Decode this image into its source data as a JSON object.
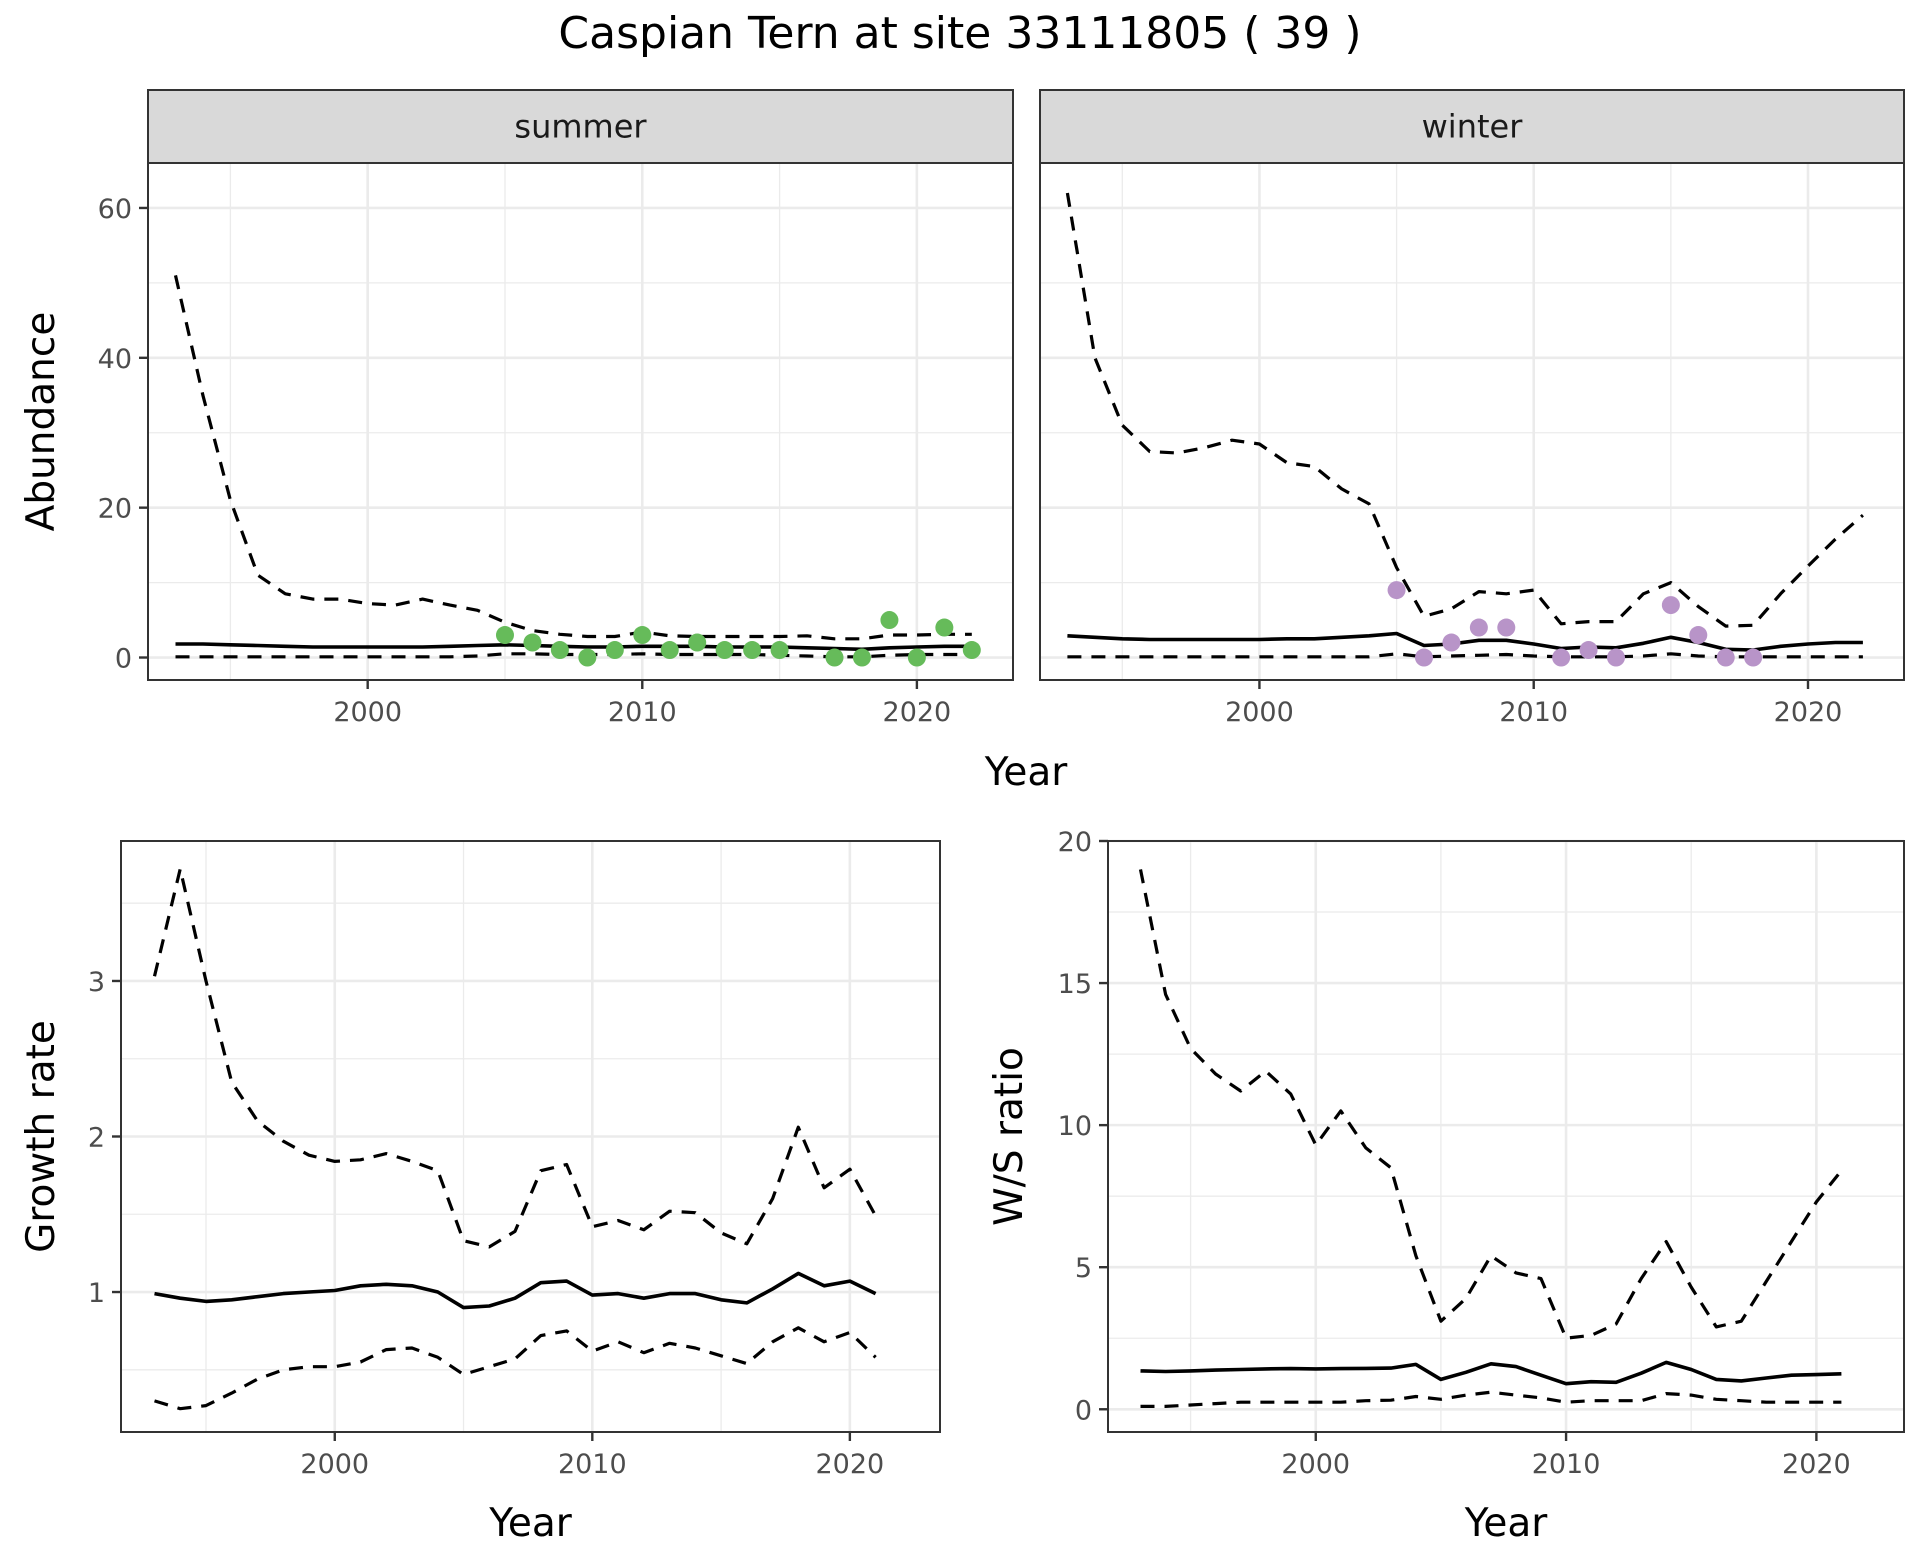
{
  "figure": {
    "title": "Caspian Tern at site 33111805 ( 39 )"
  },
  "colors": {
    "summer_points": "#66bb5a",
    "winter_points": "#b894c8",
    "line": "#000000"
  },
  "chart_data": [
    {
      "id": "abundance",
      "type": "line",
      "ylabel": "Abundance",
      "xlabel": "Year",
      "xlim": [
        1992,
        2023.5
      ],
      "ylim": [
        -3,
        66
      ],
      "x_ticks": [
        2000,
        2010,
        2020
      ],
      "y_ticks": [
        0,
        20,
        40,
        60
      ],
      "facets": [
        {
          "label": "summer",
          "point_color": "#66bb5a",
          "years": [
            1993,
            1994,
            1995,
            1996,
            1997,
            1998,
            1999,
            2000,
            2001,
            2002,
            2003,
            2004,
            2005,
            2006,
            2007,
            2008,
            2009,
            2010,
            2011,
            2012,
            2013,
            2014,
            2015,
            2016,
            2017,
            2018,
            2019,
            2020,
            2021,
            2022
          ],
          "estimate": [
            1.8,
            1.8,
            1.7,
            1.6,
            1.5,
            1.4,
            1.4,
            1.4,
            1.4,
            1.4,
            1.5,
            1.6,
            1.7,
            1.6,
            1.5,
            1.4,
            1.4,
            1.5,
            1.5,
            1.5,
            1.4,
            1.4,
            1.4,
            1.3,
            1.2,
            1.1,
            1.3,
            1.4,
            1.5,
            1.5
          ],
          "upper": [
            51,
            35,
            21,
            11,
            8.5,
            7.8,
            7.8,
            7.2,
            7,
            7.8,
            7,
            6.3,
            4.7,
            3.6,
            3.1,
            2.8,
            2.8,
            3.4,
            2.9,
            2.8,
            2.8,
            2.8,
            2.8,
            2.9,
            2.5,
            2.5,
            3,
            3,
            3.1,
            3.1
          ],
          "lower": [
            0.1,
            0.1,
            0.1,
            0.1,
            0.1,
            0.1,
            0.1,
            0.1,
            0.1,
            0.1,
            0.1,
            0.2,
            0.5,
            0.5,
            0.4,
            0.4,
            0.4,
            0.5,
            0.4,
            0.4,
            0.4,
            0.4,
            0.3,
            0.2,
            0.1,
            0.1,
            0.3,
            0.4,
            0.4,
            0.4
          ],
          "obs_years": [
            2005,
            2006,
            2007,
            2008,
            2009,
            2010,
            2011,
            2012,
            2013,
            2014,
            2015,
            2017,
            2018,
            2019,
            2020,
            2021,
            2022
          ],
          "obs_values": [
            3,
            2,
            1,
            0,
            1,
            3,
            1,
            2,
            1,
            1,
            1,
            0,
            0,
            5,
            0,
            4,
            1
          ]
        },
        {
          "label": "winter",
          "point_color": "#b894c8",
          "years": [
            1993,
            1994,
            1995,
            1996,
            1997,
            1998,
            1999,
            2000,
            2001,
            2002,
            2003,
            2004,
            2005,
            2006,
            2007,
            2008,
            2009,
            2010,
            2011,
            2012,
            2013,
            2014,
            2015,
            2016,
            2017,
            2018,
            2019,
            2020,
            2021,
            2022
          ],
          "estimate": [
            2.9,
            2.7,
            2.5,
            2.4,
            2.4,
            2.4,
            2.4,
            2.4,
            2.5,
            2.5,
            2.7,
            2.9,
            3.2,
            1.6,
            1.8,
            2.3,
            2.3,
            1.8,
            1.2,
            1.4,
            1.3,
            1.9,
            2.7,
            2,
            1.1,
            1.0,
            1.5,
            1.8,
            2,
            2
          ],
          "upper": [
            62,
            40,
            31,
            27.5,
            27.3,
            28,
            29,
            28.5,
            26,
            25.5,
            22.5,
            20.5,
            12,
            5.5,
            6.5,
            8.8,
            8.5,
            9,
            4.5,
            4.8,
            4.8,
            8.5,
            10,
            6.8,
            4.2,
            4.3,
            8.5,
            12.2,
            15.8,
            19
          ],
          "lower": [
            0.1,
            0.1,
            0.1,
            0.1,
            0.1,
            0.1,
            0.1,
            0.1,
            0.1,
            0.1,
            0.1,
            0.1,
            0.5,
            0.1,
            0.2,
            0.3,
            0.4,
            0.2,
            0.1,
            0.1,
            0.1,
            0.2,
            0.5,
            0.2,
            0.1,
            0.1,
            0.1,
            0.1,
            0.1,
            0.1
          ],
          "obs_years": [
            2005,
            2006,
            2007,
            2008,
            2009,
            2011,
            2012,
            2013,
            2015,
            2016,
            2017,
            2018
          ],
          "obs_values": [
            9,
            0,
            2,
            4,
            4,
            0,
            1,
            0,
            7,
            3,
            0,
            0
          ]
        }
      ]
    },
    {
      "id": "growth",
      "type": "line",
      "ylabel": "Growth rate",
      "xlabel": "Year",
      "xlim": [
        1991.7,
        2023.5
      ],
      "ylim": [
        0.1,
        3.9
      ],
      "x_ticks": [
        2000,
        2010,
        2020
      ],
      "y_ticks": [
        1,
        2,
        3
      ],
      "years": [
        1993,
        1994,
        1995,
        1996,
        1997,
        1998,
        1999,
        2000,
        2001,
        2002,
        2003,
        2004,
        2005,
        2006,
        2007,
        2008,
        2009,
        2010,
        2011,
        2012,
        2013,
        2014,
        2015,
        2016,
        2017,
        2018,
        2019,
        2020,
        2021
      ],
      "estimate": [
        0.99,
        0.96,
        0.94,
        0.95,
        0.97,
        0.99,
        1.0,
        1.01,
        1.04,
        1.05,
        1.04,
        1.0,
        0.9,
        0.91,
        0.96,
        1.06,
        1.07,
        0.98,
        0.99,
        0.96,
        0.99,
        0.99,
        0.95,
        0.93,
        1.02,
        1.12,
        1.04,
        1.07,
        0.99
      ],
      "upper": [
        3.03,
        3.72,
        3.0,
        2.35,
        2.1,
        1.97,
        1.88,
        1.84,
        1.85,
        1.89,
        1.84,
        1.78,
        1.33,
        1.29,
        1.39,
        1.78,
        1.82,
        1.42,
        1.46,
        1.4,
        1.52,
        1.51,
        1.38,
        1.31,
        1.6,
        2.06,
        1.67,
        1.79,
        1.49
      ],
      "lower": [
        0.3,
        0.25,
        0.27,
        0.35,
        0.44,
        0.5,
        0.52,
        0.52,
        0.55,
        0.63,
        0.64,
        0.58,
        0.47,
        0.52,
        0.57,
        0.72,
        0.75,
        0.62,
        0.68,
        0.61,
        0.67,
        0.64,
        0.59,
        0.54,
        0.68,
        0.77,
        0.68,
        0.74,
        0.58
      ]
    },
    {
      "id": "ws_ratio",
      "type": "line",
      "ylabel": "W/S ratio",
      "xlabel": "Year",
      "xlim": [
        1991.7,
        2023.5
      ],
      "ylim": [
        -0.8,
        20.0
      ],
      "x_ticks": [
        2000,
        2010,
        2020
      ],
      "y_ticks": [
        0,
        5,
        10,
        15,
        20
      ],
      "years": [
        1993,
        1994,
        1995,
        1996,
        1997,
        1998,
        1999,
        2000,
        2001,
        2002,
        2003,
        2004,
        2005,
        2006,
        2007,
        2008,
        2009,
        2010,
        2011,
        2012,
        2013,
        2014,
        2015,
        2016,
        2017,
        2018,
        2019,
        2020,
        2021
      ],
      "estimate": [
        1.35,
        1.33,
        1.35,
        1.38,
        1.4,
        1.42,
        1.43,
        1.42,
        1.43,
        1.44,
        1.45,
        1.58,
        1.05,
        1.3,
        1.6,
        1.5,
        1.2,
        0.9,
        0.97,
        0.95,
        1.27,
        1.65,
        1.4,
        1.05,
        1.0,
        1.1,
        1.2,
        1.22,
        1.25
      ],
      "upper": [
        19,
        14.6,
        12.7,
        11.8,
        11.2,
        11.9,
        11.1,
        9.3,
        10.5,
        9.2,
        8.5,
        5.4,
        3.1,
        3.9,
        5.4,
        4.8,
        4.6,
        2.5,
        2.6,
        3.0,
        4.6,
        5.9,
        4.3,
        2.9,
        3.1,
        4.5,
        5.9,
        7.3,
        8.4
      ],
      "lower": [
        0.1,
        0.1,
        0.15,
        0.2,
        0.25,
        0.25,
        0.25,
        0.25,
        0.25,
        0.3,
        0.32,
        0.45,
        0.35,
        0.5,
        0.6,
        0.5,
        0.4,
        0.25,
        0.3,
        0.3,
        0.3,
        0.55,
        0.5,
        0.35,
        0.3,
        0.25,
        0.25,
        0.25,
        0.25
      ]
    }
  ]
}
